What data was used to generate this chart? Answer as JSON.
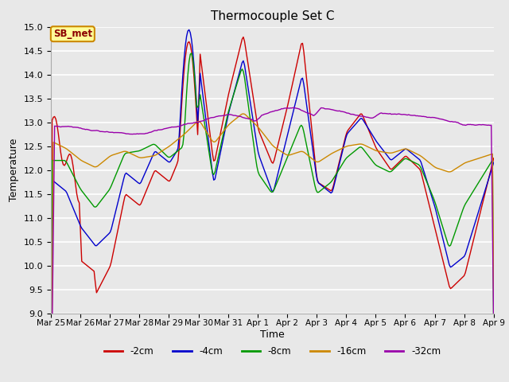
{
  "title": "Thermocouple Set C",
  "xlabel": "Time",
  "ylabel": "Temperature",
  "ylim": [
    9.0,
    15.0
  ],
  "yticks": [
    9.0,
    9.5,
    10.0,
    10.5,
    11.0,
    11.5,
    12.0,
    12.5,
    13.0,
    13.5,
    14.0,
    14.5,
    15.0
  ],
  "series_labels": [
    "-2cm",
    "-4cm",
    "-8cm",
    "-16cm",
    "-32cm"
  ],
  "series_colors": [
    "#cc0000",
    "#0000cc",
    "#009900",
    "#cc8800",
    "#9900aa"
  ],
  "annotation_text": "SB_met",
  "annotation_bg": "#ffff99",
  "annotation_border": "#cc8800",
  "x_tick_labels": [
    "Mar 25",
    "Mar 26",
    "Mar 27",
    "Mar 28",
    "Mar 29",
    "Mar 30",
    "Mar 31",
    "Apr 1",
    "Apr 2",
    "Apr 3",
    "Apr 4",
    "Apr 5",
    "Apr 6",
    "Apr 7",
    "Apr 8",
    "Apr 9"
  ],
  "bg_color": "#e8e8e8",
  "plot_bg_color": "#e8e8e8",
  "figsize": [
    6.4,
    4.8
  ],
  "dpi": 100
}
